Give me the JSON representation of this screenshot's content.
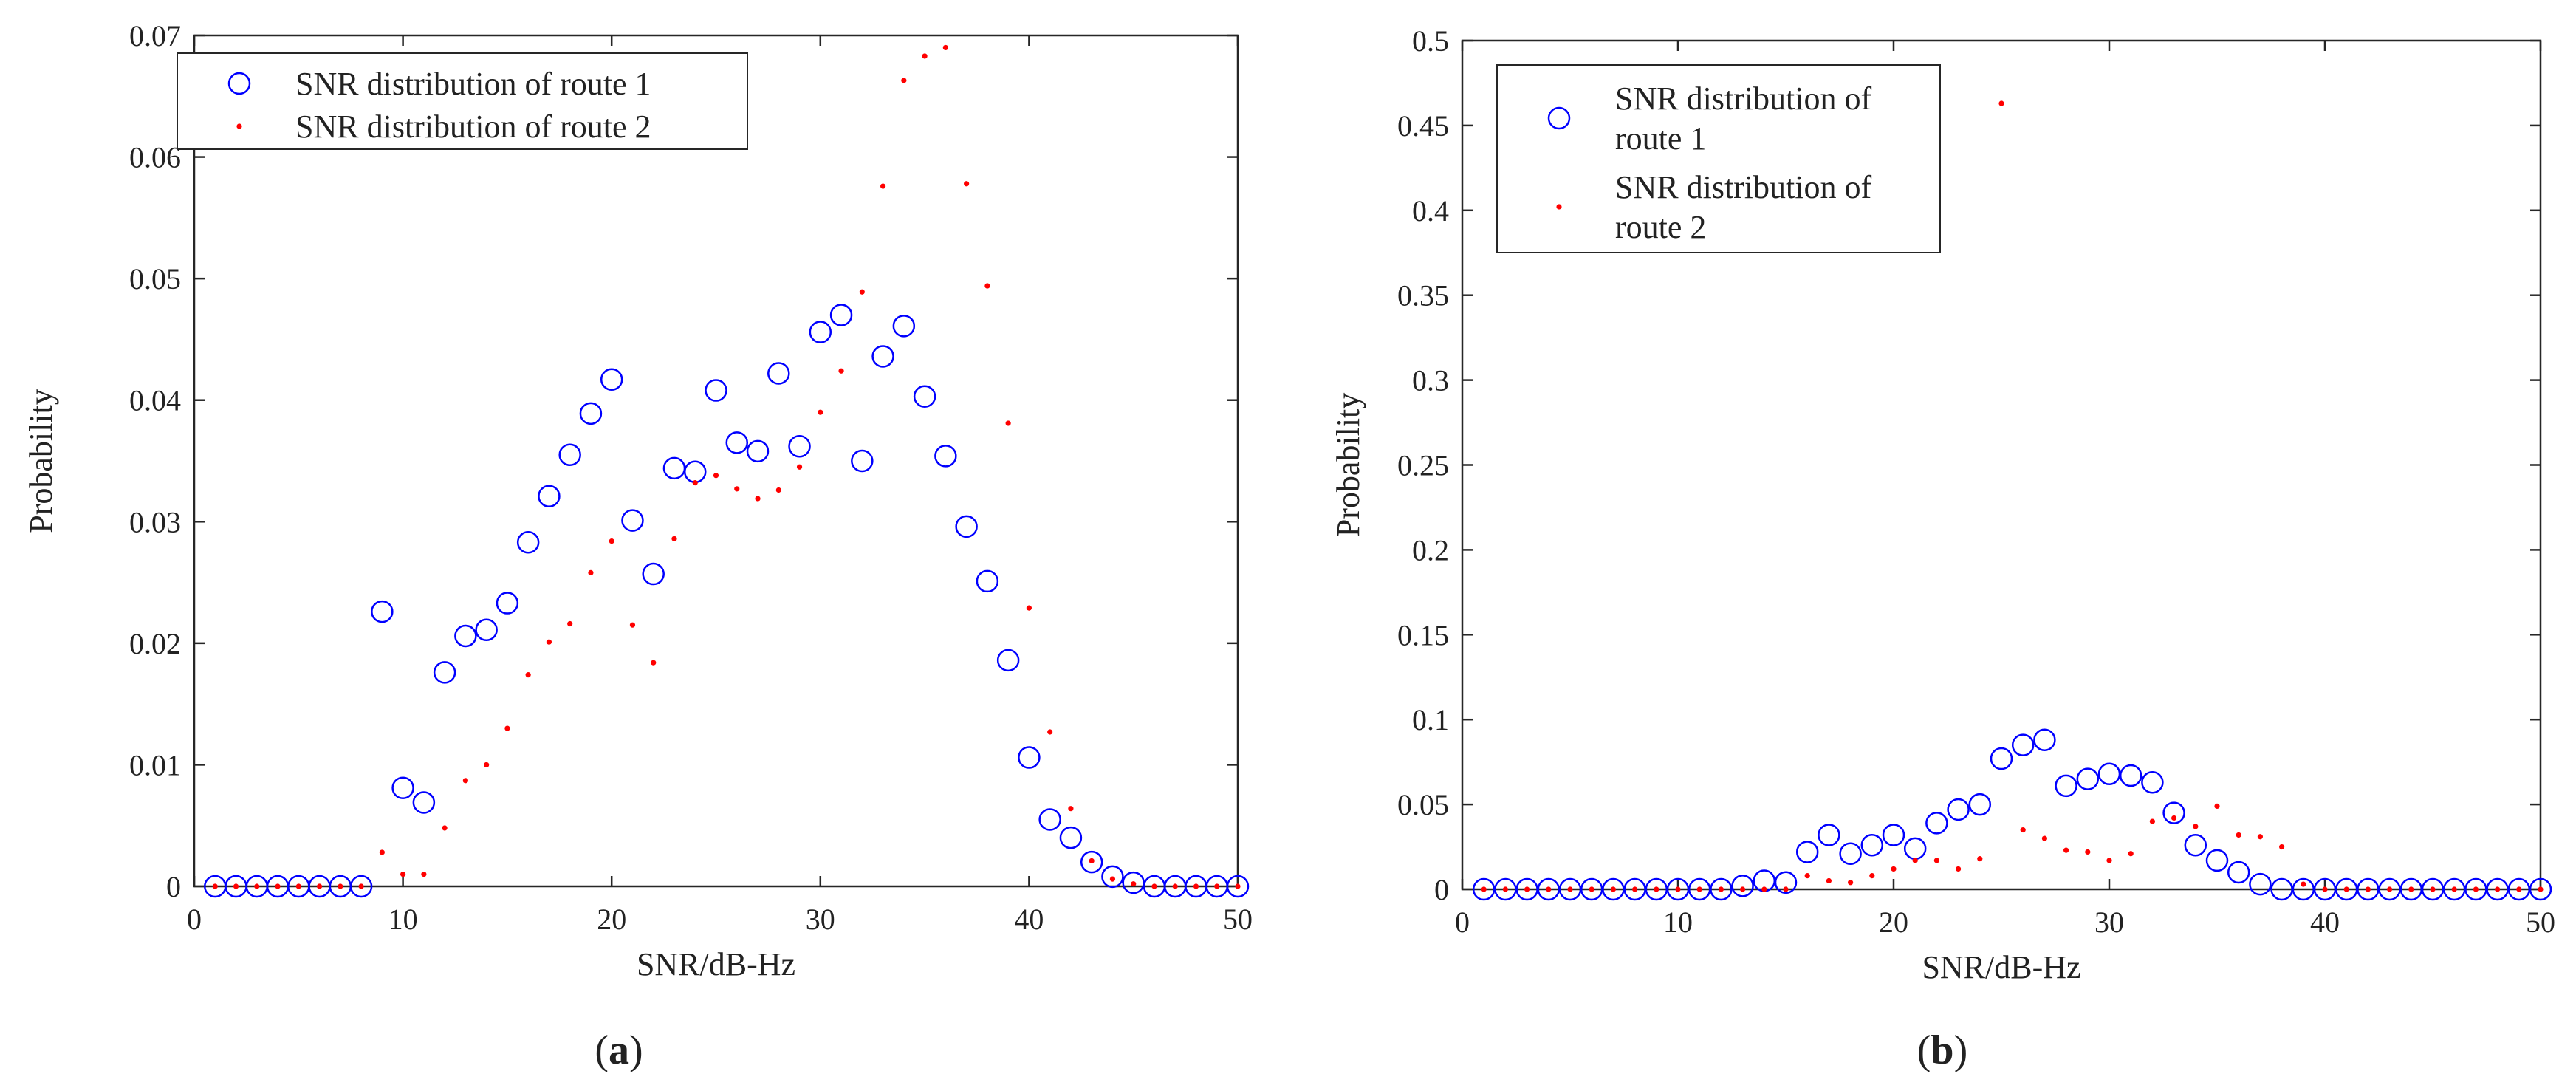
{
  "chart_data": [
    {
      "type": "scatter",
      "panel_label": "(a)",
      "xlabel": "SNR/dB-Hz",
      "ylabel": "Probability",
      "xlim": [
        0,
        50
      ],
      "ylim": [
        0,
        0.07
      ],
      "xticks": [
        0,
        10,
        20,
        30,
        40,
        50
      ],
      "yticks": [
        0,
        0.01,
        0.02,
        0.03,
        0.04,
        0.05,
        0.06,
        0.07
      ],
      "xtick_labels": [
        "0",
        "10",
        "20",
        "30",
        "40",
        "50"
      ],
      "ytick_labels": [
        "0",
        "0.01",
        "0.02",
        "0.03",
        "0.04",
        "0.05",
        "0.06",
        "0.07"
      ],
      "legend_position": "top-left",
      "series": [
        {
          "name": "SNR distribution of route 1",
          "legend_lines": [
            "SNR distribution of route 1"
          ],
          "marker": "circle",
          "color": "#0000ff",
          "x": [
            1,
            2,
            3,
            4,
            5,
            6,
            7,
            8,
            9,
            10,
            11,
            12,
            13,
            14,
            15,
            16,
            17,
            18,
            19,
            20,
            21,
            22,
            23,
            24,
            25,
            26,
            27,
            28,
            29,
            30,
            31,
            32,
            33,
            34,
            35,
            36,
            37,
            38,
            39,
            40,
            41,
            42,
            43,
            44,
            45,
            46,
            47,
            48,
            49,
            50
          ],
          "y": [
            0,
            0,
            0,
            0,
            0,
            0,
            0,
            0,
            0.0226,
            0.0081,
            0.0069,
            0.0176,
            0.0206,
            0.0211,
            0.0233,
            0.0283,
            0.0321,
            0.0355,
            0.0389,
            0.0417,
            0.0301,
            0.0257,
            0.0344,
            0.0341,
            0.0408,
            0.0365,
            0.0358,
            0.0422,
            0.0362,
            0.0456,
            0.047,
            0.035,
            0.0436,
            0.0461,
            0.0403,
            0.0354,
            0.0296,
            0.0251,
            0.0186,
            0.0106,
            0.0055,
            0.004,
            0.002,
            0.0008,
            0.0003,
            0,
            0,
            0,
            0,
            0
          ]
        },
        {
          "name": "SNR distribution of route 2",
          "legend_lines": [
            "SNR distribution of route 2"
          ],
          "marker": "dot",
          "color": "#ff0000",
          "x": [
            1,
            2,
            3,
            4,
            5,
            6,
            7,
            8,
            9,
            10,
            11,
            12,
            13,
            14,
            15,
            16,
            17,
            18,
            19,
            20,
            21,
            22,
            23,
            24,
            25,
            26,
            27,
            28,
            29,
            30,
            31,
            32,
            33,
            34,
            35,
            36,
            37,
            38,
            39,
            40,
            41,
            42,
            43,
            44,
            45,
            46,
            47,
            48,
            49,
            50
          ],
          "y": [
            0,
            0,
            0,
            0,
            0,
            0,
            0,
            0,
            0.0028,
            0.001,
            0.001,
            0.0048,
            0.0087,
            0.01,
            0.013,
            0.0174,
            0.0201,
            0.0216,
            0.0258,
            0.0284,
            0.0215,
            0.0184,
            0.0286,
            0.0332,
            0.0338,
            0.0327,
            0.0319,
            0.0326,
            0.0345,
            0.039,
            0.0424,
            0.0489,
            0.0576,
            0.0663,
            0.0683,
            0.069,
            0.0578,
            0.0494,
            0.0381,
            0.0229,
            0.0127,
            0.0064,
            0.0021,
            0.0006,
            0.0002,
            0,
            0,
            0,
            0,
            0
          ]
        }
      ]
    },
    {
      "type": "scatter",
      "panel_label": "(b)",
      "xlabel": "SNR/dB-Hz",
      "ylabel": "Probability",
      "xlim": [
        0,
        50
      ],
      "ylim": [
        0,
        0.5
      ],
      "xticks": [
        0,
        10,
        20,
        30,
        40,
        50
      ],
      "yticks": [
        0,
        0.05,
        0.1,
        0.15,
        0.2,
        0.25,
        0.3,
        0.35,
        0.4,
        0.45,
        0.5
      ],
      "xtick_labels": [
        "0",
        "10",
        "20",
        "30",
        "40",
        "50"
      ],
      "ytick_labels": [
        "0",
        "0.05",
        "0.1",
        "0.15",
        "0.2",
        "0.25",
        "0.3",
        "0.35",
        "0.4",
        "0.45",
        "0.5"
      ],
      "legend_position": "top-left",
      "series": [
        {
          "name": "SNR distribution of route 1",
          "legend_lines": [
            "SNR distribution of",
            "route 1"
          ],
          "marker": "circle",
          "color": "#0000ff",
          "x": [
            1,
            2,
            3,
            4,
            5,
            6,
            7,
            8,
            9,
            10,
            11,
            12,
            13,
            14,
            15,
            16,
            17,
            18,
            19,
            20,
            21,
            22,
            23,
            24,
            25,
            26,
            27,
            28,
            29,
            30,
            31,
            32,
            33,
            34,
            35,
            36,
            37,
            38,
            39,
            40,
            41,
            42,
            43,
            44,
            45,
            46,
            47,
            48,
            49,
            50
          ],
          "y": [
            0,
            0,
            0,
            0,
            0,
            0,
            0,
            0,
            0,
            0,
            0,
            0,
            0.002,
            0.005,
            0.004,
            0.022,
            0.032,
            0.021,
            0.026,
            0.032,
            0.024,
            0.039,
            0.047,
            0.05,
            0.077,
            0.085,
            0.088,
            0.061,
            0.065,
            0.068,
            0.067,
            0.063,
            0.045,
            0.026,
            0.017,
            0.01,
            0.003,
            0,
            0,
            0,
            0,
            0,
            0,
            0,
            0,
            0,
            0,
            0,
            0,
            0
          ]
        },
        {
          "name": "SNR distribution of route 2",
          "legend_lines": [
            "SNR distribution of",
            "route 2"
          ],
          "marker": "dot",
          "color": "#ff0000",
          "x": [
            1,
            2,
            3,
            4,
            5,
            6,
            7,
            8,
            9,
            10,
            11,
            12,
            13,
            14,
            15,
            16,
            17,
            18,
            19,
            20,
            21,
            22,
            23,
            24,
            25,
            26,
            27,
            28,
            29,
            30,
            31,
            32,
            33,
            34,
            35,
            36,
            37,
            38,
            39,
            40,
            41,
            42,
            43,
            44,
            45,
            46,
            47,
            48,
            49,
            50
          ],
          "y": [
            0,
            0,
            0,
            0,
            0,
            0,
            0,
            0,
            0,
            0,
            0,
            0,
            0,
            0,
            0,
            0.008,
            0.005,
            0.004,
            0.008,
            0.012,
            0.017,
            0.017,
            0.012,
            0.018,
            0.463,
            0.035,
            0.03,
            0.023,
            0.022,
            0.017,
            0.021,
            0.04,
            0.042,
            0.037,
            0.049,
            0.032,
            0.031,
            0.025,
            0.003,
            0,
            0,
            0,
            0,
            0,
            0,
            0,
            0,
            0,
            0,
            0
          ]
        }
      ]
    }
  ]
}
